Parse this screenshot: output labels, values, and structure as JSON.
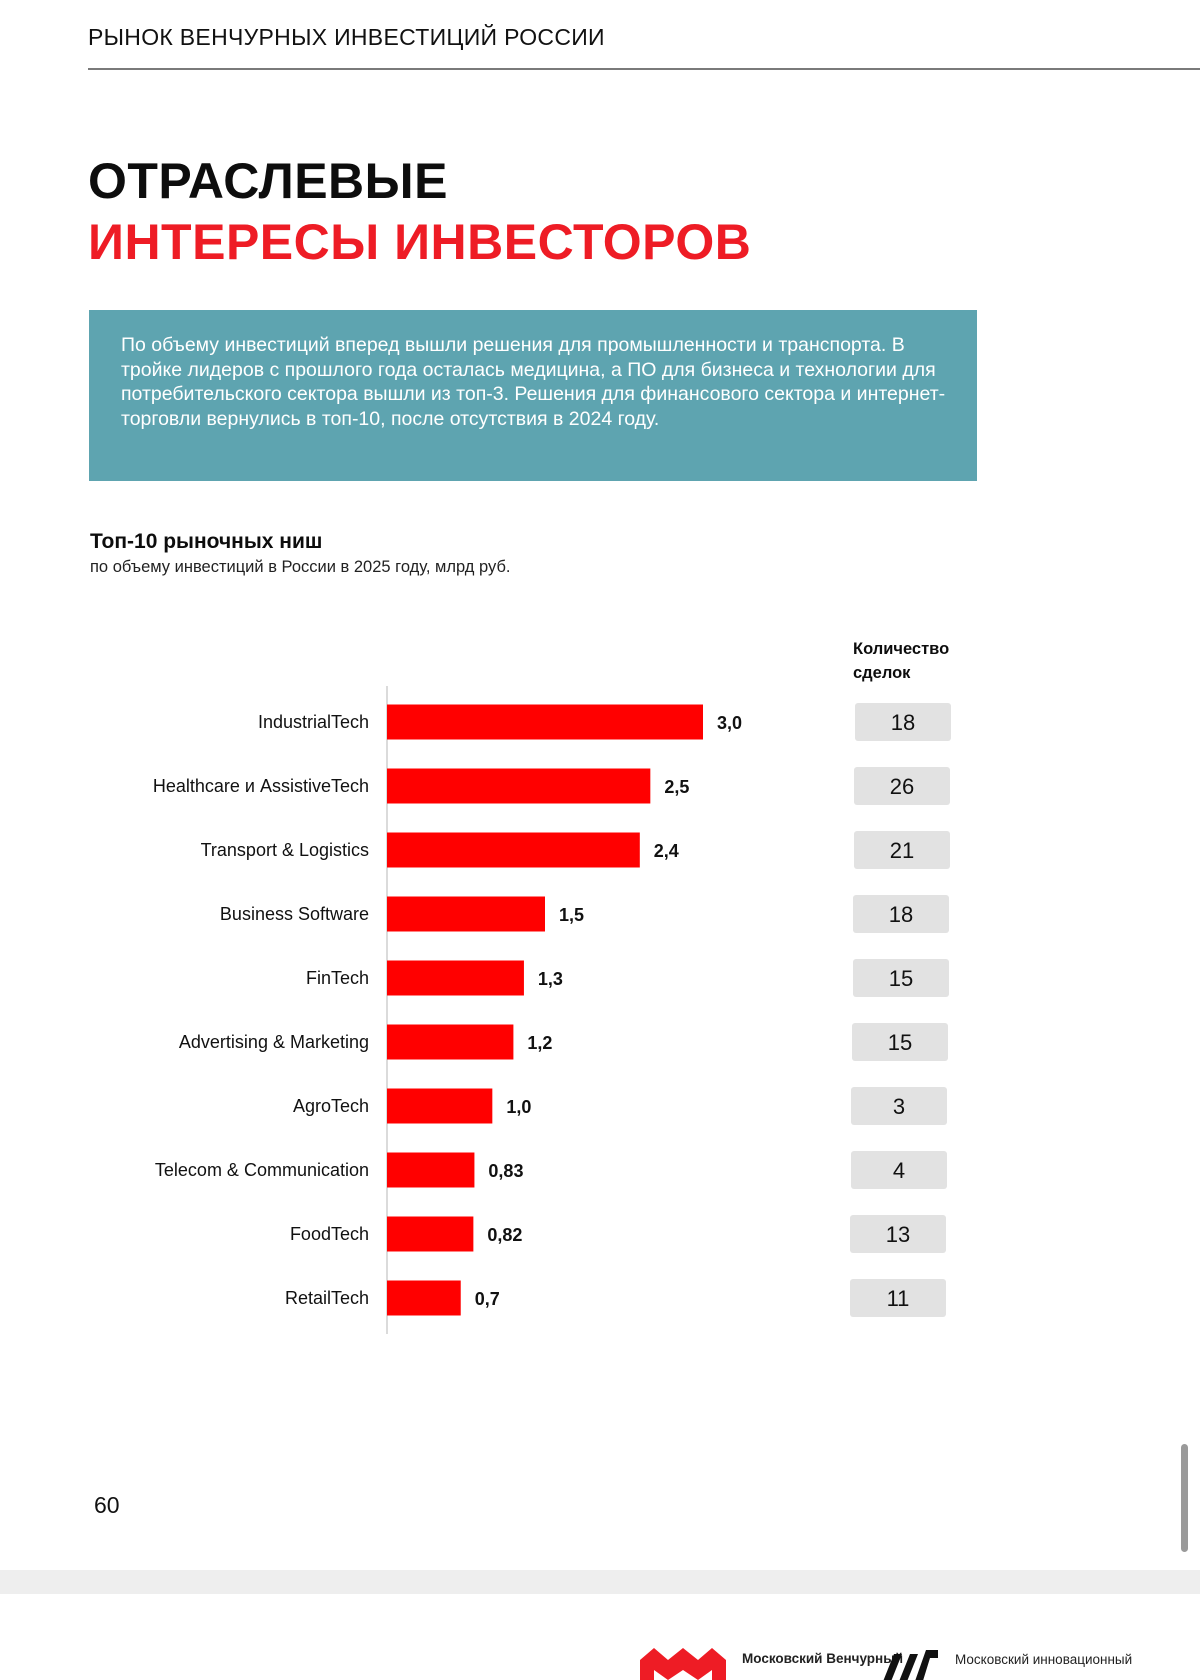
{
  "header": {
    "title": "РЫНОК ВЕНЧУРНЫХ ИНВЕСТИЦИЙ РОССИИ"
  },
  "title": {
    "line1": "ОТРАСЛЕВЫЕ",
    "line2": "ИНТЕРЕСЫ ИНВЕСТОРОВ",
    "line2_color": "#EE1C25"
  },
  "info": {
    "text": "По объему инвестиций вперед вышли решения для промышленности и транспорта. В тройке лидеров с прошлого года осталась медицина, а ПО для бизнеса и технологии для потребительского сектора вышли из топ-3. Решения для финансового сектора и интернет-торговли вернулись в топ-10, после отсутствия в 2024 году.",
    "background": "#5EA4B0"
  },
  "chart_data": {
    "type": "bar",
    "orientation": "horizontal",
    "title": "Топ-10 рыночных ниш",
    "subtitle": "по объему инвестиций в России в 2025 году, млрд руб.",
    "categories": [
      "IndustrialTech",
      "Healthcare и AssistiveTech",
      "Transport & Logistics",
      "Business Software",
      "FinTech",
      "Advertising & Marketing",
      "AgroTech",
      "Telecom & Communication",
      "FoodTech",
      "RetailTech"
    ],
    "values": [
      3.0,
      2.5,
      2.4,
      1.5,
      1.3,
      1.2,
      1.0,
      0.83,
      0.82,
      0.7
    ],
    "value_labels": [
      "3,0",
      "2,5",
      "2,4",
      "1,5",
      "1,3",
      "1,2",
      "1,0",
      "0,83",
      "0,82",
      "0,7"
    ],
    "xlim": [
      0,
      3.0
    ],
    "bar_color": "#FF0000",
    "grid": false,
    "legend": "none",
    "deals_header": "Количество сделок",
    "deals": [
      "18",
      "26",
      "21",
      "18",
      "15",
      "15",
      "3",
      "4",
      "13",
      "11"
    ]
  },
  "page_number": "60",
  "footer": {
    "logo1_text": "Московский Венчурный",
    "logo2_text": "Московский инновационный"
  },
  "icons": {
    "logo1": "mvf-logo-icon",
    "logo2": "mik-logo-icon"
  }
}
